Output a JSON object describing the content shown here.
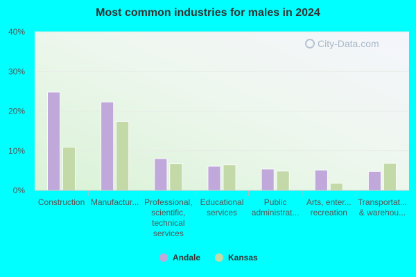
{
  "chart_data": {
    "type": "bar",
    "title": "Most common industries for males in 2024",
    "categories": [
      [
        "Construction"
      ],
      [
        "Manufactur..."
      ],
      [
        "Professional,",
        "scientific,",
        "technical",
        "services"
      ],
      [
        "Educational",
        "services"
      ],
      [
        "Public",
        "administrat..."
      ],
      [
        "Arts, enter...",
        "recreation"
      ],
      [
        "Transportat...",
        "& warehou..."
      ]
    ],
    "series": [
      {
        "name": "Andale",
        "color": "#c0a8db",
        "values": [
          24.8,
          22.3,
          8.0,
          6.1,
          5.4,
          5.1,
          4.8
        ]
      },
      {
        "name": "Kansas",
        "color": "#c4d9a8",
        "values": [
          10.9,
          17.4,
          6.7,
          6.5,
          4.9,
          1.8,
          6.8
        ]
      }
    ],
    "yticks": [
      "0%",
      "10%",
      "20%",
      "30%",
      "40%"
    ],
    "ylim": [
      0,
      40
    ],
    "grid": true,
    "legend_position": "bottom",
    "watermark": "City-Data.com"
  }
}
